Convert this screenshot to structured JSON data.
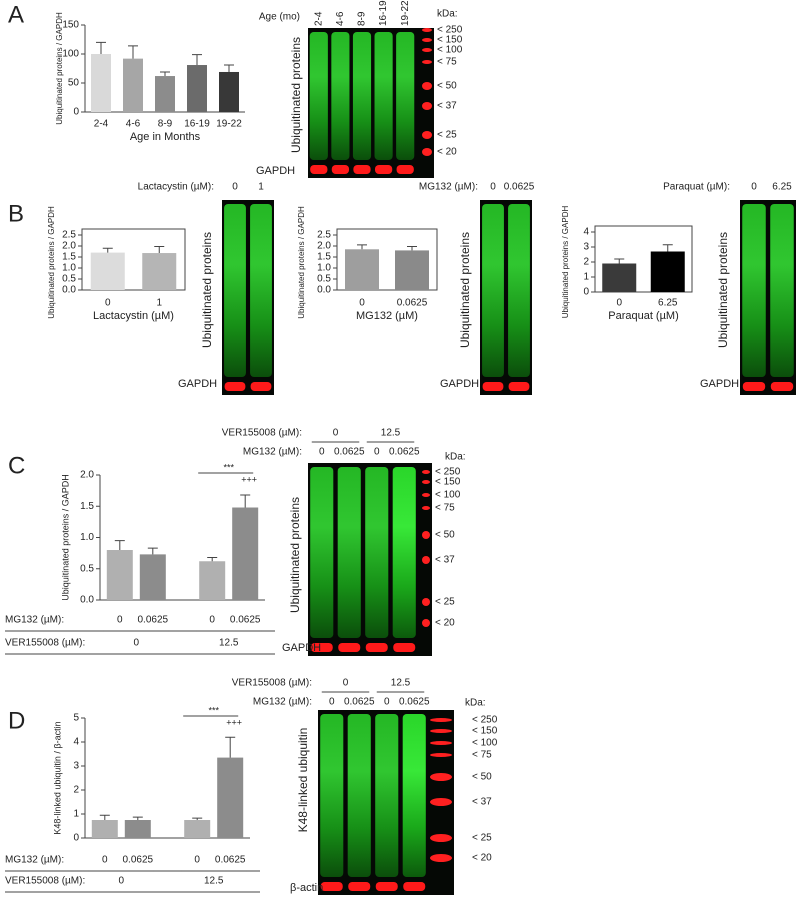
{
  "panel_labels": [
    "A",
    "B",
    "C",
    "D"
  ],
  "chart_data": [
    {
      "type": "bar",
      "ylabel": "Ubiquitinated proteins / GAPDH",
      "xlabel": "Age in Months",
      "categories": [
        "2-4",
        "4-6",
        "8-9",
        "16-19",
        "19-22"
      ],
      "values": [
        100,
        92,
        62,
        81,
        69
      ],
      "errors": [
        20,
        22,
        7,
        18,
        12
      ],
      "colors": [
        "#d9d9d9",
        "#a6a6a6",
        "#8c8c8c",
        "#6b6b6b",
        "#383838"
      ],
      "ylim": [
        0,
        150
      ],
      "yticks": [
        0,
        50,
        100,
        150
      ]
    },
    {
      "type": "bar",
      "ylabel": "Ubiquitinated proteins / GAPDH",
      "xlabel": "Lactacystin (µM)",
      "categories": [
        "0",
        "1"
      ],
      "values": [
        1.7,
        1.68
      ],
      "errors": [
        0.2,
        0.3
      ],
      "colors": [
        "#dcdcdc",
        "#b5b5b5"
      ],
      "box": true,
      "ylim": [
        0,
        2.5
      ],
      "yticks": [
        {
          "value": 0,
          "label": "0.0"
        },
        0.5,
        {
          "value": 1,
          "label": "1.0"
        },
        1.5,
        {
          "value": 2,
          "label": "2.0"
        },
        2.5
      ]
    },
    {
      "type": "bar",
      "ylabel": "Ubiquitinated proteins / GAPDH",
      "xlabel": "MG132 (µM)",
      "categories": [
        "0",
        "0.0625"
      ],
      "values": [
        1.85,
        1.8
      ],
      "errors": [
        0.2,
        0.18
      ],
      "colors": [
        "#9e9e9e",
        "#8a8a8a"
      ],
      "box": true,
      "ylim": [
        0,
        2.5
      ],
      "yticks": [
        {
          "value": 0,
          "label": "0.0"
        },
        0.5,
        {
          "value": 1,
          "label": "1.0"
        },
        1.5,
        {
          "value": 2,
          "label": "2.0"
        },
        2.5
      ]
    },
    {
      "type": "bar",
      "ylabel": "Ubiquitinated proteins / GAPDH",
      "xlabel": "Paraquat (µM)",
      "categories": [
        "0",
        "6.25"
      ],
      "values": [
        1.9,
        2.7
      ],
      "errors": [
        0.3,
        0.45
      ],
      "colors": [
        "#3a3a3a",
        "#000000"
      ],
      "box": true,
      "ylim": [
        0,
        4
      ],
      "yticks": [
        0,
        1,
        2,
        3,
        4
      ]
    },
    {
      "type": "bar",
      "ylabel": "Ubiquitinated proteins / GAPDH",
      "category_label": "MG132 (µM):",
      "group_label": "VER155008 (µM):",
      "categories": [
        "0",
        "0.0625",
        "0",
        "0.0625"
      ],
      "groups": [
        "0",
        "12.5"
      ],
      "values": [
        0.8,
        0.73,
        0.62,
        1.48
      ],
      "errors": [
        0.15,
        0.1,
        0.06,
        0.2
      ],
      "colors": [
        "#b0b0b0",
        "#8c8c8c",
        "#b0b0b0",
        "#8c8c8c"
      ],
      "annotations": [
        "***",
        "+++"
      ],
      "ylim": [
        0,
        2
      ],
      "yticks": [
        {
          "value": 0,
          "label": "0.0"
        },
        0.5,
        {
          "value": 1,
          "label": "1.0"
        },
        1.5,
        {
          "value": 2,
          "label": "2.0"
        }
      ]
    },
    {
      "type": "bar",
      "ylabel": "K48-linked ubiquitin / β-actin",
      "category_label": "MG132 (µM):",
      "group_label": "VER155008 (µM):",
      "categories": [
        "0",
        "0.0625",
        "0",
        "0.0625"
      ],
      "groups": [
        "0",
        "12.5"
      ],
      "values": [
        0.75,
        0.75,
        0.75,
        3.35
      ],
      "errors": [
        0.2,
        0.12,
        0.08,
        0.85
      ],
      "colors": [
        "#b0b0b0",
        "#8c8c8c",
        "#b0b0b0",
        "#8c8c8c"
      ],
      "annotations": [
        "***",
        "+++"
      ],
      "ylim": [
        0,
        5
      ],
      "yticks": [
        0,
        1,
        2,
        3,
        4,
        5
      ]
    }
  ],
  "blots": [
    {
      "header_label": "Age (mo)",
      "lanes": [
        "2-4",
        "4-6",
        "8-9",
        "16-19",
        "19-22"
      ],
      "main_label": "Ubiquitinated proteins",
      "loading_label": "GAPDH",
      "kda_label": "kDa:",
      "markers": [
        "< 250",
        "< 150",
        "< 100",
        "< 75",
        "< 50",
        "< 37",
        "< 25",
        "< 20"
      ]
    },
    {
      "header_label": "Lactacystin (µM):",
      "lanes": [
        "0",
        "1"
      ],
      "main_label": "Ubiquitinated proteins",
      "loading_label": "GAPDH"
    },
    {
      "header_label": "MG132 (µM):",
      "lanes": [
        "0",
        "0.0625"
      ],
      "main_label": "Ubiquitinated proteins",
      "loading_label": "GAPDH"
    },
    {
      "header_label": "Paraquat (µM):",
      "lanes": [
        "0",
        "6.25"
      ],
      "main_label": "Ubiquitinated proteins",
      "loading_label": "GAPDH"
    },
    {
      "group_label": "VER155008 (µM):",
      "groups": [
        "0",
        "12.5"
      ],
      "header_label": "MG132 (µM):",
      "lanes": [
        "0",
        "0.0625",
        "0",
        "0.0625"
      ],
      "main_label": "Ubiquitinated proteins",
      "loading_label": "GAPDH",
      "kda_label": "kDa:",
      "markers": [
        "< 250",
        "< 150",
        "< 100",
        "< 75",
        "< 50",
        "< 37",
        "< 25",
        "< 20"
      ]
    },
    {
      "group_label": "VER155008 (µM):",
      "groups": [
        "0",
        "12.5"
      ],
      "header_label": "MG132 (µM):",
      "lanes": [
        "0",
        "0.0625",
        "0",
        "0.0625"
      ],
      "main_label": "K48-linked ubiquitin",
      "loading_label": "β-actin",
      "kda_label": "kDa:",
      "markers": [
        "< 250",
        "< 150",
        "< 100",
        "< 75",
        "< 50",
        "< 37",
        "< 25",
        "< 20"
      ]
    }
  ]
}
